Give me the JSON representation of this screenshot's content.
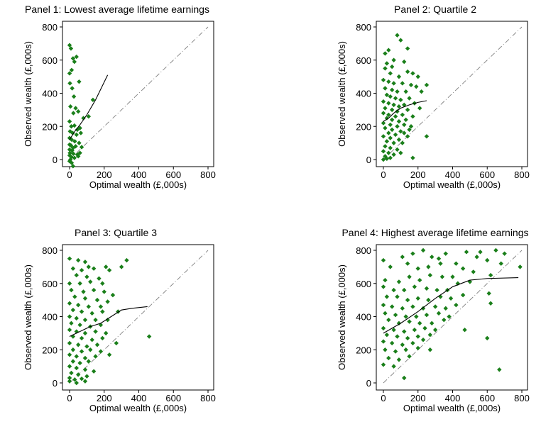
{
  "colors": {
    "marker": "#1a7f1a",
    "fit_line": "#000000",
    "diagonal": "#808080",
    "frame": "#000000"
  },
  "chart_data": [
    {
      "type": "scatter",
      "title": "Panel 1: Lowest average lifetime earnings",
      "xlabel": "Optimal wealth (£,000s)",
      "ylabel": "Observed wealth (£,000s)",
      "xlim": [
        0,
        800
      ],
      "ylim": [
        0,
        800
      ],
      "xticks": [
        0,
        200,
        400,
        600,
        800
      ],
      "yticks": [
        0,
        200,
        400,
        600,
        800
      ],
      "ylim_data": [
        -40,
        800
      ],
      "points": [
        [
          0,
          690
        ],
        [
          8,
          670
        ],
        [
          20,
          610
        ],
        [
          28,
          590
        ],
        [
          40,
          620
        ],
        [
          0,
          520
        ],
        [
          12,
          540
        ],
        [
          2,
          460
        ],
        [
          15,
          430
        ],
        [
          55,
          470
        ],
        [
          25,
          380
        ],
        [
          135,
          360
        ],
        [
          5,
          320
        ],
        [
          35,
          310
        ],
        [
          22,
          280
        ],
        [
          50,
          290
        ],
        [
          80,
          250
        ],
        [
          110,
          260
        ],
        [
          0,
          230
        ],
        [
          10,
          200
        ],
        [
          28,
          205
        ],
        [
          45,
          180
        ],
        [
          60,
          190
        ],
        [
          3,
          170
        ],
        [
          18,
          160
        ],
        [
          40,
          150
        ],
        [
          65,
          160
        ],
        [
          0,
          130
        ],
        [
          12,
          120
        ],
        [
          30,
          110
        ],
        [
          55,
          100
        ],
        [
          0,
          90
        ],
        [
          8,
          85
        ],
        [
          20,
          70
        ],
        [
          35,
          80
        ],
        [
          70,
          75
        ],
        [
          0,
          60
        ],
        [
          15,
          55
        ],
        [
          2,
          40
        ],
        [
          22,
          35
        ],
        [
          45,
          30
        ],
        [
          0,
          25
        ],
        [
          10,
          15
        ],
        [
          28,
          10
        ],
        [
          5,
          0
        ],
        [
          0,
          -10
        ],
        [
          12,
          -20
        ],
        [
          20,
          -40
        ],
        [
          50,
          20
        ],
        [
          60,
          40
        ]
      ],
      "fit_line": [
        [
          0,
          120
        ],
        [
          30,
          170
        ],
        [
          60,
          210
        ],
        [
          100,
          270
        ],
        [
          150,
          360
        ],
        [
          220,
          510
        ]
      ],
      "diagonal": [
        [
          0,
          0
        ],
        [
          800,
          800
        ]
      ]
    },
    {
      "type": "scatter",
      "title": "Panel 2: Quartile 2",
      "xlabel": "Optimal wealth (£,000s)",
      "ylabel": "Observed wealth (£,000s)",
      "xlim": [
        0,
        800
      ],
      "ylim": [
        0,
        800
      ],
      "xticks": [
        0,
        200,
        400,
        600,
        800
      ],
      "yticks": [
        0,
        200,
        400,
        600,
        800
      ],
      "points": [
        [
          80,
          750
        ],
        [
          100,
          720
        ],
        [
          140,
          670
        ],
        [
          10,
          640
        ],
        [
          30,
          660
        ],
        [
          60,
          600
        ],
        [
          20,
          580
        ],
        [
          120,
          590
        ],
        [
          50,
          560
        ],
        [
          10,
          550
        ],
        [
          40,
          520
        ],
        [
          140,
          530
        ],
        [
          170,
          520
        ],
        [
          200,
          500
        ],
        [
          90,
          500
        ],
        [
          0,
          480
        ],
        [
          30,
          470
        ],
        [
          60,
          460
        ],
        [
          110,
          460
        ],
        [
          160,
          450
        ],
        [
          190,
          440
        ],
        [
          250,
          450
        ],
        [
          10,
          430
        ],
        [
          50,
          420
        ],
        [
          80,
          410
        ],
        [
          130,
          410
        ],
        [
          220,
          410
        ],
        [
          20,
          390
        ],
        [
          40,
          380
        ],
        [
          70,
          370
        ],
        [
          100,
          360
        ],
        [
          150,
          370
        ],
        [
          0,
          350
        ],
        [
          30,
          340
        ],
        [
          60,
          330
        ],
        [
          90,
          320
        ],
        [
          120,
          330
        ],
        [
          180,
          340
        ],
        [
          10,
          310
        ],
        [
          50,
          300
        ],
        [
          80,
          290
        ],
        [
          140,
          300
        ],
        [
          210,
          310
        ],
        [
          0,
          280
        ],
        [
          30,
          270
        ],
        [
          70,
          260
        ],
        [
          110,
          270
        ],
        [
          170,
          260
        ],
        [
          20,
          250
        ],
        [
          50,
          240
        ],
        [
          90,
          230
        ],
        [
          130,
          240
        ],
        [
          0,
          220
        ],
        [
          40,
          210
        ],
        [
          80,
          200
        ],
        [
          120,
          210
        ],
        [
          160,
          200
        ],
        [
          10,
          190
        ],
        [
          50,
          180
        ],
        [
          100,
          170
        ],
        [
          150,
          180
        ],
        [
          30,
          160
        ],
        [
          70,
          150
        ],
        [
          120,
          160
        ],
        [
          0,
          140
        ],
        [
          40,
          130
        ],
        [
          90,
          120
        ],
        [
          140,
          140
        ],
        [
          250,
          140
        ],
        [
          20,
          110
        ],
        [
          60,
          100
        ],
        [
          110,
          100
        ],
        [
          10,
          80
        ],
        [
          40,
          70
        ],
        [
          80,
          60
        ],
        [
          0,
          50
        ],
        [
          30,
          40
        ],
        [
          60,
          30
        ],
        [
          100,
          40
        ],
        [
          10,
          20
        ],
        [
          40,
          10
        ],
        [
          0,
          0
        ],
        [
          20,
          5
        ],
        [
          170,
          10
        ]
      ],
      "fit_line": [
        [
          0,
          230
        ],
        [
          30,
          250
        ],
        [
          60,
          280
        ],
        [
          100,
          310
        ],
        [
          150,
          330
        ],
        [
          200,
          345
        ],
        [
          250,
          355
        ]
      ],
      "diagonal": [
        [
          0,
          0
        ],
        [
          800,
          800
        ]
      ]
    },
    {
      "type": "scatter",
      "title": "Panel 3: Quartile 3",
      "xlabel": "Optimal wealth (£,000s)",
      "ylabel": "Observed wealth (£,000s)",
      "xlim": [
        0,
        800
      ],
      "ylim": [
        0,
        800
      ],
      "xticks": [
        0,
        200,
        400,
        600,
        800
      ],
      "yticks": [
        0,
        200,
        400,
        600,
        800
      ],
      "points": [
        [
          0,
          750
        ],
        [
          50,
          740
        ],
        [
          90,
          730
        ],
        [
          110,
          700
        ],
        [
          20,
          690
        ],
        [
          70,
          680
        ],
        [
          140,
          690
        ],
        [
          210,
          700
        ],
        [
          230,
          680
        ],
        [
          330,
          740
        ],
        [
          40,
          650
        ],
        [
          100,
          640
        ],
        [
          170,
          630
        ],
        [
          300,
          700
        ],
        [
          0,
          600
        ],
        [
          60,
          600
        ],
        [
          120,
          610
        ],
        [
          190,
          600
        ],
        [
          10,
          560
        ],
        [
          80,
          550
        ],
        [
          140,
          560
        ],
        [
          200,
          550
        ],
        [
          250,
          530
        ],
        [
          30,
          520
        ],
        [
          90,
          510
        ],
        [
          160,
          500
        ],
        [
          220,
          490
        ],
        [
          0,
          480
        ],
        [
          50,
          470
        ],
        [
          110,
          460
        ],
        [
          180,
          460
        ],
        [
          20,
          440
        ],
        [
          70,
          430
        ],
        [
          130,
          420
        ],
        [
          190,
          430
        ],
        [
          280,
          430
        ],
        [
          0,
          400
        ],
        [
          40,
          390
        ],
        [
          90,
          380
        ],
        [
          150,
          380
        ],
        [
          220,
          380
        ],
        [
          10,
          360
        ],
        [
          60,
          350
        ],
        [
          120,
          340
        ],
        [
          180,
          350
        ],
        [
          0,
          320
        ],
        [
          40,
          310
        ],
        [
          90,
          300
        ],
        [
          150,
          310
        ],
        [
          210,
          300
        ],
        [
          20,
          280
        ],
        [
          70,
          270
        ],
        [
          130,
          260
        ],
        [
          190,
          270
        ],
        [
          460,
          280
        ],
        [
          0,
          240
        ],
        [
          50,
          230
        ],
        [
          100,
          220
        ],
        [
          160,
          230
        ],
        [
          270,
          240
        ],
        [
          20,
          200
        ],
        [
          70,
          190
        ],
        [
          120,
          200
        ],
        [
          180,
          190
        ],
        [
          0,
          170
        ],
        [
          40,
          160
        ],
        [
          90,
          150
        ],
        [
          150,
          160
        ],
        [
          230,
          170
        ],
        [
          20,
          130
        ],
        [
          60,
          120
        ],
        [
          110,
          130
        ],
        [
          0,
          100
        ],
        [
          40,
          90
        ],
        [
          90,
          80
        ],
        [
          140,
          70
        ],
        [
          10,
          60
        ],
        [
          50,
          50
        ],
        [
          100,
          40
        ],
        [
          0,
          30
        ],
        [
          30,
          20
        ],
        [
          70,
          25
        ],
        [
          0,
          10
        ],
        [
          40,
          0
        ],
        [
          90,
          10
        ]
      ],
      "fit_line": [
        [
          0,
          280
        ],
        [
          60,
          310
        ],
        [
          120,
          340
        ],
        [
          180,
          360
        ],
        [
          240,
          400
        ],
        [
          300,
          440
        ],
        [
          360,
          450
        ],
        [
          450,
          460
        ]
      ],
      "diagonal": [
        [
          0,
          0
        ],
        [
          800,
          800
        ]
      ]
    },
    {
      "type": "scatter",
      "title": "Panel 4: Highest average lifetime earnings",
      "xlabel": "Optimal wealth (£,000s)",
      "ylabel": "Observed wealth (£,000s)",
      "xlim": [
        0,
        800
      ],
      "ylim": [
        0,
        800
      ],
      "xticks": [
        0,
        200,
        400,
        600,
        800
      ],
      "yticks": [
        0,
        200,
        400,
        600,
        800
      ],
      "points": [
        [
          0,
          740
        ],
        [
          110,
          760
        ],
        [
          170,
          780
        ],
        [
          230,
          800
        ],
        [
          280,
          760
        ],
        [
          320,
          750
        ],
        [
          360,
          780
        ],
        [
          480,
          790
        ],
        [
          560,
          790
        ],
        [
          650,
          800
        ],
        [
          700,
          780
        ],
        [
          40,
          700
        ],
        [
          140,
          720
        ],
        [
          200,
          690
        ],
        [
          260,
          700
        ],
        [
          330,
          720
        ],
        [
          420,
          720
        ],
        [
          540,
          760
        ],
        [
          600,
          740
        ],
        [
          680,
          720
        ],
        [
          790,
          700
        ],
        [
          10,
          620
        ],
        [
          90,
          610
        ],
        [
          150,
          640
        ],
        [
          210,
          620
        ],
        [
          270,
          650
        ],
        [
          340,
          640
        ],
        [
          400,
          640
        ],
        [
          460,
          690
        ],
        [
          520,
          670
        ],
        [
          620,
          650
        ],
        [
          0,
          580
        ],
        [
          60,
          560
        ],
        [
          120,
          560
        ],
        [
          180,
          580
        ],
        [
          250,
          570
        ],
        [
          310,
          560
        ],
        [
          370,
          560
        ],
        [
          430,
          600
        ],
        [
          500,
          610
        ],
        [
          610,
          540
        ],
        [
          20,
          520
        ],
        [
          80,
          520
        ],
        [
          140,
          500
        ],
        [
          200,
          510
        ],
        [
          260,
          500
        ],
        [
          330,
          520
        ],
        [
          390,
          510
        ],
        [
          460,
          530
        ],
        [
          0,
          470
        ],
        [
          50,
          460
        ],
        [
          110,
          450
        ],
        [
          170,
          460
        ],
        [
          230,
          450
        ],
        [
          300,
          460
        ],
        [
          360,
          450
        ],
        [
          420,
          470
        ],
        [
          10,
          420
        ],
        [
          70,
          410
        ],
        [
          130,
          400
        ],
        [
          190,
          400
        ],
        [
          250,
          410
        ],
        [
          320,
          420
        ],
        [
          380,
          400
        ],
        [
          620,
          480
        ],
        [
          30,
          380
        ],
        [
          90,
          360
        ],
        [
          150,
          370
        ],
        [
          210,
          360
        ],
        [
          280,
          360
        ],
        [
          350,
          380
        ],
        [
          0,
          330
        ],
        [
          60,
          320
        ],
        [
          120,
          310
        ],
        [
          180,
          320
        ],
        [
          240,
          330
        ],
        [
          300,
          320
        ],
        [
          20,
          290
        ],
        [
          80,
          280
        ],
        [
          140,
          270
        ],
        [
          200,
          280
        ],
        [
          270,
          290
        ],
        [
          470,
          320
        ],
        [
          0,
          250
        ],
        [
          50,
          240
        ],
        [
          110,
          230
        ],
        [
          170,
          240
        ],
        [
          230,
          260
        ],
        [
          600,
          270
        ],
        [
          10,
          200
        ],
        [
          70,
          190
        ],
        [
          130,
          200
        ],
        [
          200,
          210
        ],
        [
          270,
          200
        ],
        [
          30,
          150
        ],
        [
          90,
          140
        ],
        [
          150,
          160
        ],
        [
          0,
          110
        ],
        [
          60,
          100
        ],
        [
          120,
          30
        ],
        [
          670,
          80
        ]
      ],
      "fit_line": [
        [
          0,
          300
        ],
        [
          100,
          360
        ],
        [
          200,
          430
        ],
        [
          300,
          510
        ],
        [
          400,
          580
        ],
        [
          500,
          620
        ],
        [
          600,
          630
        ],
        [
          780,
          635
        ]
      ],
      "diagonal": [
        [
          0,
          0
        ],
        [
          800,
          800
        ]
      ]
    }
  ]
}
